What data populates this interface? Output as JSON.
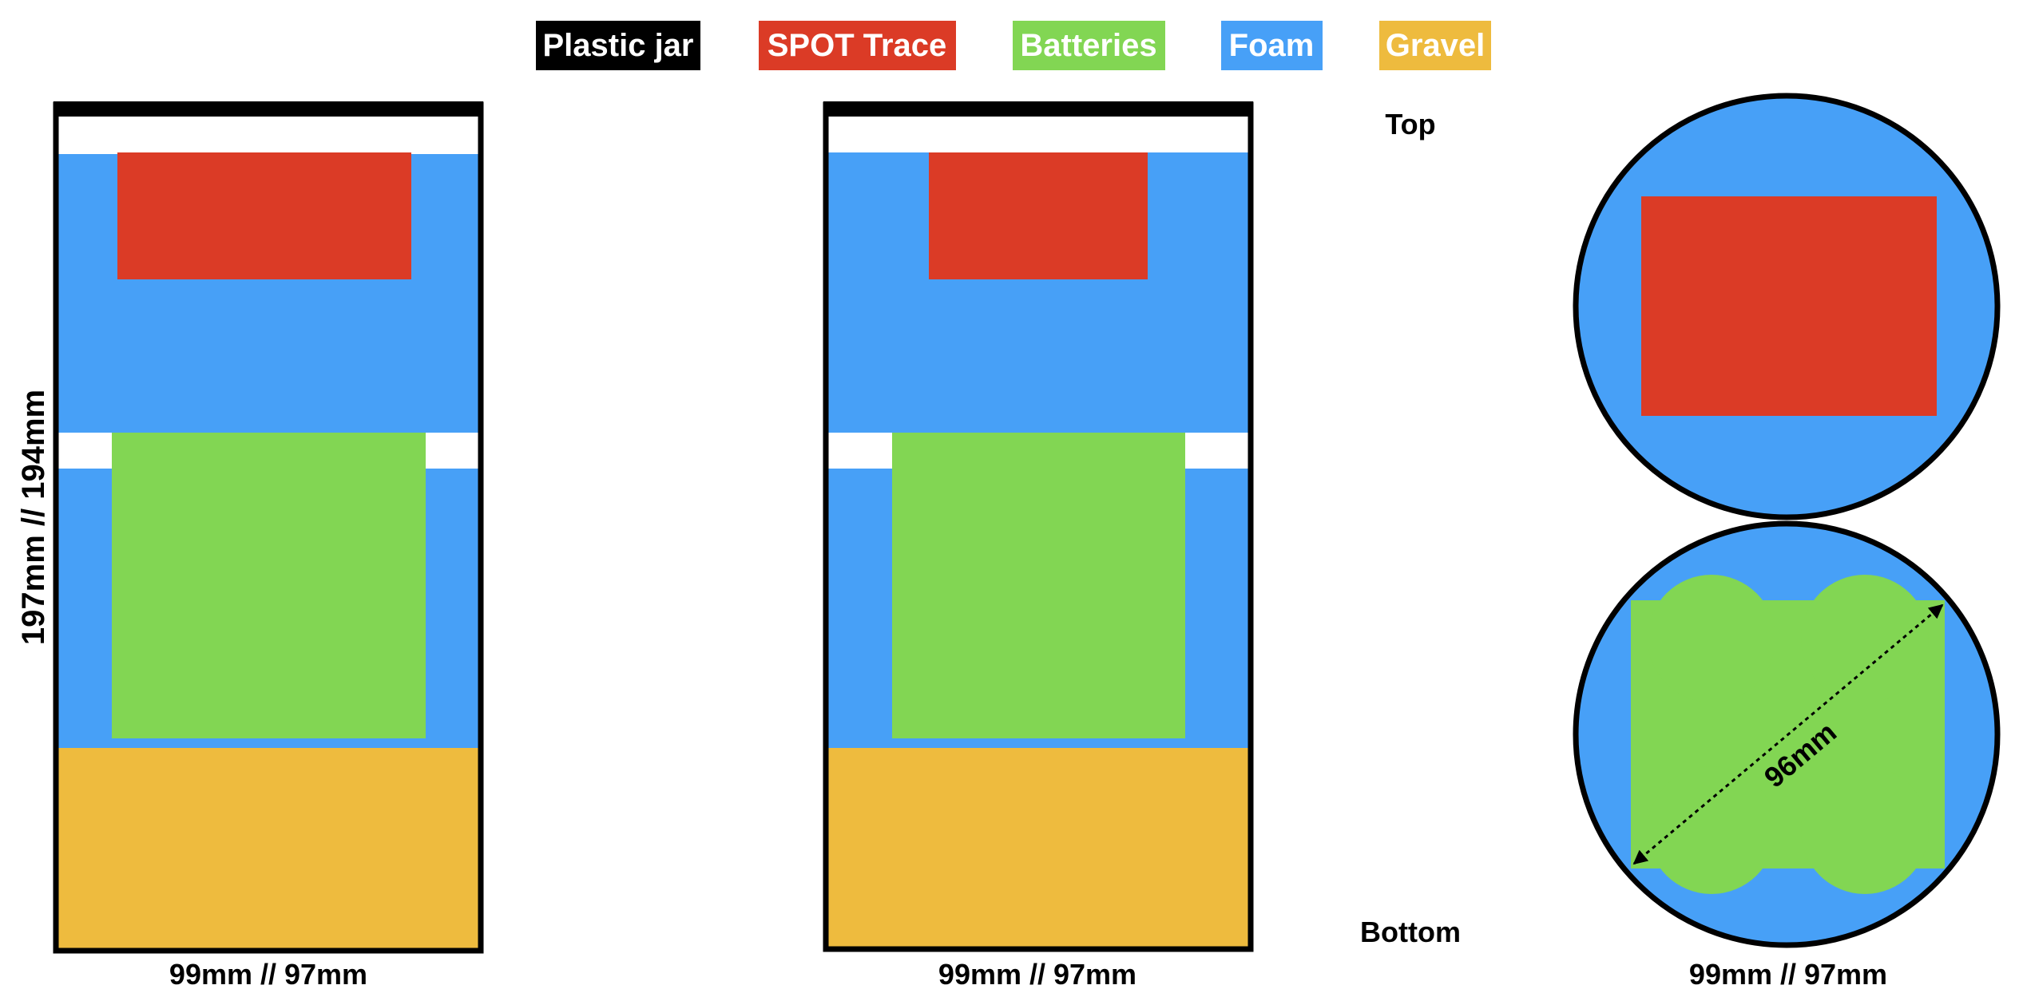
{
  "legend": [
    {
      "label": "Plastic jar",
      "color": "#000000",
      "text_color": "#ffffff"
    },
    {
      "label": "SPOT Trace",
      "color": "#db3b26",
      "text_color": "#ffffff"
    },
    {
      "label": "Batteries",
      "color": "#82d653",
      "text_color": "#ffffff"
    },
    {
      "label": "Foam",
      "color": "#47a0f7",
      "text_color": "#ffffff"
    },
    {
      "label": "Gravel",
      "color": "#eebb3e",
      "text_color": "#ffffff"
    }
  ],
  "colors": {
    "jar": "#000000",
    "spot": "#db3b26",
    "batteries": "#82d653",
    "foam": "#47a0f7",
    "gravel": "#eebb3e",
    "empty": "#ffffff"
  },
  "labels": {
    "height": "197mm // 194mm",
    "width_left": "99mm // 97mm",
    "width_middle": "99mm // 97mm",
    "width_right": "99mm // 97mm",
    "top": "Top",
    "bottom": "Bottom",
    "diagonal": "96mm"
  }
}
